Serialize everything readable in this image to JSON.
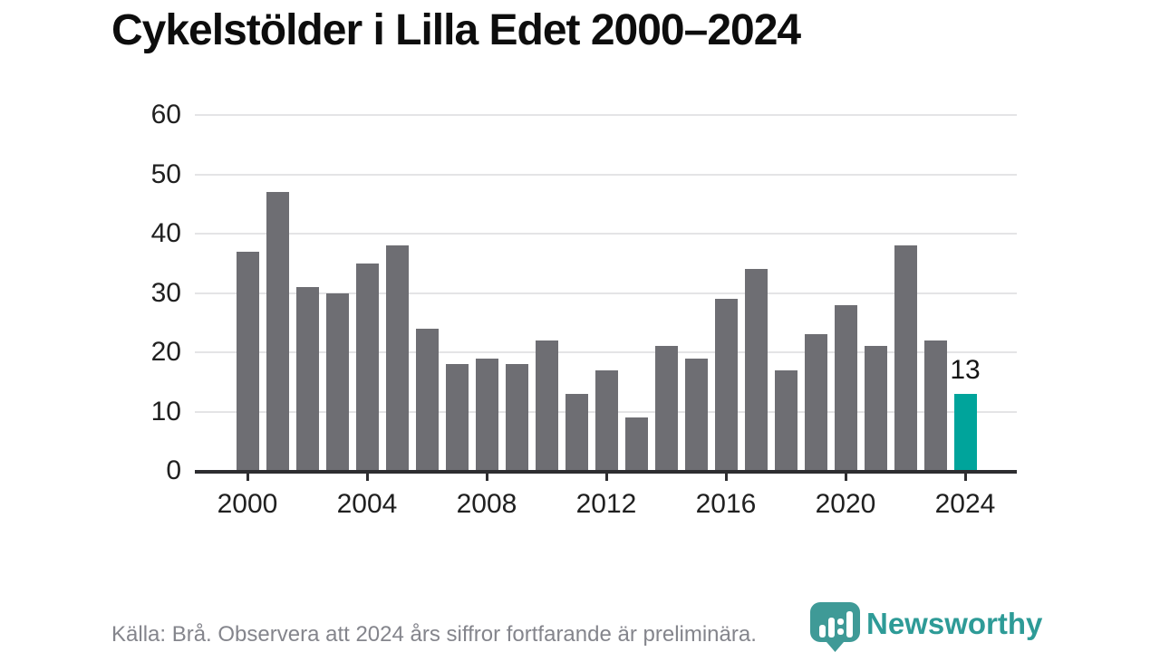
{
  "title": "Cykelstölder i Lilla Edet 2000–2024",
  "chart_data": {
    "type": "bar",
    "title": "Cykelstölder i Lilla Edet 2000–2024",
    "categories": [
      2000,
      2001,
      2002,
      2003,
      2004,
      2005,
      2006,
      2007,
      2008,
      2009,
      2010,
      2011,
      2012,
      2013,
      2014,
      2015,
      2016,
      2017,
      2018,
      2019,
      2020,
      2021,
      2022,
      2023,
      2024
    ],
    "values": [
      37,
      47,
      31,
      30,
      35,
      38,
      24,
      18,
      19,
      18,
      22,
      13,
      17,
      9,
      21,
      19,
      29,
      34,
      17,
      23,
      28,
      21,
      38,
      22,
      13
    ],
    "xlabel": "",
    "ylabel": "",
    "ylim": [
      0,
      60
    ],
    "y_ticks": [
      0,
      10,
      20,
      30,
      40,
      50,
      60
    ],
    "x_ticks": [
      2000,
      2004,
      2008,
      2012,
      2016,
      2020,
      2024
    ],
    "grid": true,
    "legend": false,
    "highlight_year": 2024,
    "highlight_label": "13",
    "colors": {
      "bar": "#6e6e73",
      "highlight": "#00a49b",
      "grid": "#e4e4e6",
      "axis": "#2d2d30",
      "tick_label": "#202020",
      "annotation": "#141414"
    }
  },
  "footer": {
    "source": "Källa: Brå. Observera att 2024 års siffror fortfarande är preliminära.",
    "brand": "Newsworthy",
    "brand_color": "#2e9b97",
    "logo_color": "#3f9a97"
  }
}
